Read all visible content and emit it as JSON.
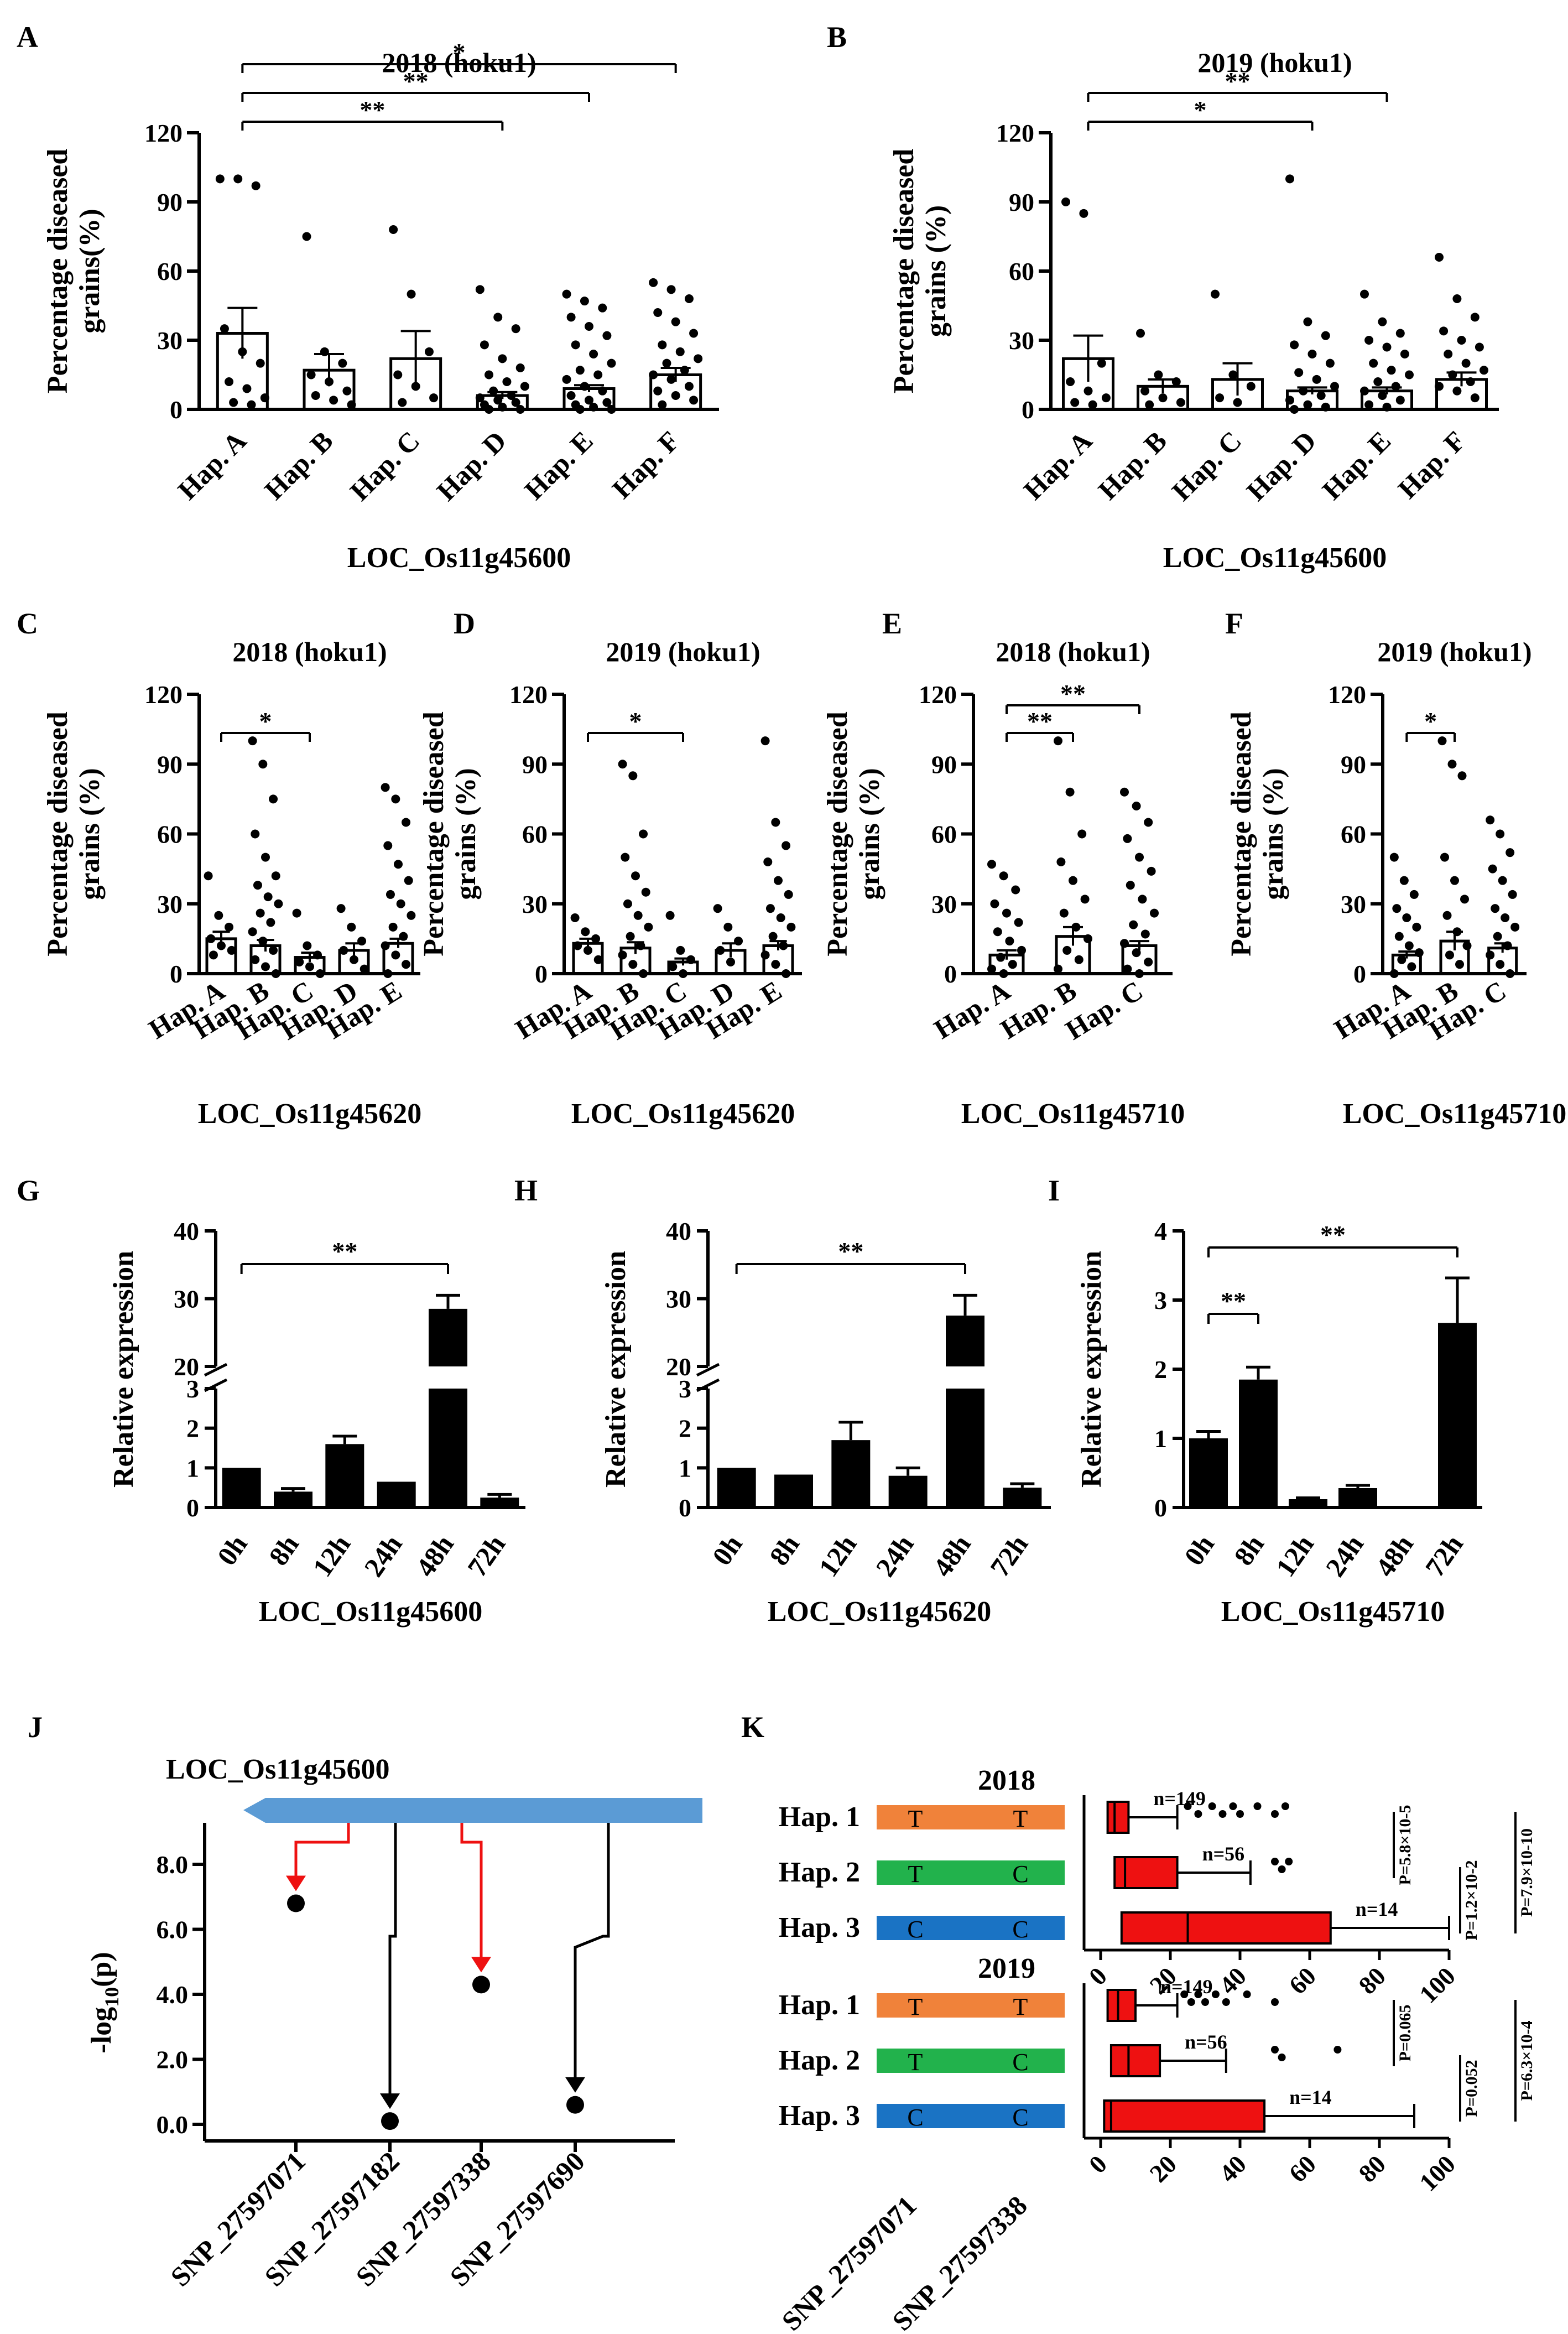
{
  "panels": [
    {
      "letter": "A",
      "title": "2018 (hoku1)",
      "ylabel": "Percentage diseased\ngrains(%)",
      "xlabel": "LOC_Os11g45600",
      "yticks": [
        0,
        30,
        60,
        90,
        120
      ],
      "ylim": [
        0,
        120
      ],
      "chart_data": {
        "type": "bar",
        "categories": [
          "Hap. A",
          "Hap. B",
          "Hap. C",
          "Hap. D",
          "Hap. E",
          "Hap. F"
        ],
        "values": [
          33,
          17,
          22,
          6,
          9,
          15
        ],
        "errors": [
          11,
          7,
          12,
          1.5,
          1.5,
          3
        ],
        "points": [
          [
            100,
            100,
            97,
            35,
            25,
            20,
            12,
            9,
            5,
            3,
            2
          ],
          [
            75,
            25,
            20,
            15,
            12,
            8,
            6,
            4,
            2
          ],
          [
            78,
            50,
            25,
            15,
            10,
            5,
            3
          ],
          [
            52,
            40,
            35,
            28,
            22,
            18,
            15,
            12,
            10,
            8,
            6,
            5,
            4,
            3,
            2,
            1,
            0,
            0
          ],
          [
            50,
            47,
            44,
            40,
            36,
            32,
            28,
            24,
            20,
            17,
            15,
            13,
            10,
            8,
            6,
            4,
            3,
            2,
            1,
            0,
            0
          ],
          [
            55,
            52,
            48,
            42,
            38,
            33,
            28,
            25,
            22,
            20,
            17,
            15,
            13,
            10,
            8,
            6,
            4,
            2
          ]
        ],
        "brackets": [
          {
            "from": 0,
            "to": 3,
            "label": "**"
          },
          {
            "from": 0,
            "to": 4,
            "label": "**"
          },
          {
            "from": 0,
            "to": 5,
            "label": "*"
          }
        ]
      }
    },
    {
      "letter": "B",
      "title": "2019 (hoku1)",
      "ylabel": "Percentage diseased\ngrains (%)",
      "xlabel": "LOC_Os11g45600",
      "yticks": [
        0,
        30,
        60,
        90,
        120
      ],
      "ylim": [
        0,
        120
      ],
      "chart_data": {
        "type": "bar",
        "categories": [
          "Hap. A",
          "Hap. B",
          "Hap. C",
          "Hap. D",
          "Hap. E",
          "Hap. F"
        ],
        "values": [
          22,
          10,
          13,
          8,
          8,
          13
        ],
        "errors": [
          10,
          3,
          7,
          1.5,
          1.5,
          3
        ],
        "points": [
          [
            90,
            85,
            20,
            12,
            8,
            5,
            3,
            2
          ],
          [
            33,
            15,
            12,
            8,
            5,
            3,
            2
          ],
          [
            50,
            15,
            10,
            5,
            3
          ],
          [
            100,
            38,
            32,
            28,
            24,
            20,
            16,
            13,
            10,
            8,
            6,
            4,
            2,
            1,
            0
          ],
          [
            50,
            38,
            33,
            30,
            27,
            24,
            20,
            17,
            15,
            12,
            10,
            8,
            6,
            4,
            2,
            1
          ],
          [
            66,
            48,
            40,
            34,
            30,
            27,
            24,
            20,
            17,
            15,
            12,
            10,
            8,
            5
          ]
        ],
        "brackets": [
          {
            "from": 0,
            "to": 3,
            "label": "*"
          },
          {
            "from": 0,
            "to": 4,
            "label": "**"
          }
        ]
      }
    },
    {
      "letter": "C",
      "title": "2018 (hoku1)",
      "ylabel": "Percentage diseased\ngrains (%)",
      "xlabel": "LOC_Os11g45620",
      "yticks": [
        0,
        30,
        60,
        90,
        120
      ],
      "ylim": [
        0,
        120
      ],
      "chart_data": {
        "type": "bar",
        "categories": [
          "Hap. A",
          "Hap. B",
          "Hap. C",
          "Hap. D",
          "Hap. E"
        ],
        "values": [
          15,
          12,
          7,
          10,
          13
        ],
        "errors": [
          3,
          2.5,
          2,
          3,
          2
        ],
        "points": [
          [
            42,
            25,
            20,
            15,
            12,
            10,
            8
          ],
          [
            100,
            90,
            75,
            60,
            50,
            42,
            38,
            33,
            30,
            26,
            22,
            18,
            14,
            10,
            6,
            3,
            0
          ],
          [
            26,
            12,
            8,
            5,
            3,
            0
          ],
          [
            28,
            20,
            14,
            10,
            6,
            2
          ],
          [
            80,
            75,
            65,
            55,
            47,
            40,
            34,
            30,
            25,
            20,
            16,
            12,
            8,
            4,
            0
          ]
        ],
        "brackets": [
          {
            "from": 0,
            "to": 2,
            "label": "*"
          }
        ]
      }
    },
    {
      "letter": "D",
      "title": "2019 (hoku1)",
      "ylabel": "Percentage diseased\ngrains (%)",
      "xlabel": "LOC_Os11g45620",
      "yticks": [
        0,
        30,
        60,
        90,
        120
      ],
      "ylim": [
        0,
        120
      ],
      "chart_data": {
        "type": "bar",
        "categories": [
          "Hap. A",
          "Hap. B",
          "Hap. C",
          "Hap. D",
          "Hap. E"
        ],
        "values": [
          13,
          11,
          5,
          10,
          12
        ],
        "errors": [
          2,
          2.5,
          1.5,
          3,
          2
        ],
        "points": [
          [
            24,
            18,
            15,
            12,
            10,
            6
          ],
          [
            90,
            85,
            60,
            50,
            42,
            35,
            30,
            25,
            20,
            16,
            12,
            8,
            4,
            0
          ],
          [
            25,
            10,
            6,
            3,
            0
          ],
          [
            28,
            20,
            14,
            10,
            5
          ],
          [
            100,
            65,
            55,
            48,
            40,
            34,
            28,
            24,
            20,
            16,
            12,
            8,
            4,
            0
          ]
        ],
        "brackets": [
          {
            "from": 0,
            "to": 2,
            "label": "*"
          }
        ]
      }
    },
    {
      "letter": "E",
      "title": "2018 (hoku1)",
      "ylabel": "Percentage diseased\ngrains (%)",
      "xlabel": "LOC_Os11g45710",
      "yticks": [
        0,
        30,
        60,
        90,
        120
      ],
      "ylim": [
        0,
        120
      ],
      "chart_data": {
        "type": "bar",
        "categories": [
          "Hap. A",
          "Hap. B",
          "Hap. C"
        ],
        "values": [
          8,
          16,
          12
        ],
        "errors": [
          2,
          4,
          2
        ],
        "points": [
          [
            47,
            42,
            36,
            30,
            26,
            22,
            18,
            14,
            10,
            7,
            4,
            2,
            0
          ],
          [
            100,
            78,
            60,
            48,
            40,
            32,
            26,
            20,
            15,
            10,
            6,
            2
          ],
          [
            78,
            72,
            65,
            58,
            50,
            44,
            38,
            32,
            26,
            21,
            17,
            13,
            9,
            5,
            2,
            0
          ]
        ],
        "brackets": [
          {
            "from": 0,
            "to": 1,
            "label": "**"
          },
          {
            "from": 0,
            "to": 2,
            "label": "**"
          }
        ]
      }
    },
    {
      "letter": "F",
      "title": "2019 (hoku1)",
      "ylabel": "Percentage diseased\ngrains (%)",
      "xlabel": "LOC_Os11g45710",
      "yticks": [
        0,
        30,
        60,
        90,
        120
      ],
      "ylim": [
        0,
        120
      ],
      "chart_data": {
        "type": "bar",
        "categories": [
          "Hap. A",
          "Hap. B",
          "Hap. C"
        ],
        "values": [
          8,
          14,
          11
        ],
        "errors": [
          1.5,
          4,
          2
        ],
        "points": [
          [
            50,
            40,
            34,
            28,
            24,
            20,
            16,
            12,
            9,
            6,
            3,
            0
          ],
          [
            100,
            90,
            85,
            50,
            40,
            32,
            25,
            18,
            12,
            8,
            4
          ],
          [
            66,
            60,
            52,
            45,
            40,
            34,
            28,
            24,
            20,
            16,
            12,
            8,
            4,
            0
          ]
        ],
        "brackets": [
          {
            "from": 0,
            "to": 1,
            "label": "*"
          }
        ]
      }
    }
  ],
  "expression_panels": [
    {
      "letter": "G",
      "ylabel": "Relative expression",
      "xlabel": "LOC_Os11g45600",
      "broken": true,
      "yticks_low": [
        0,
        1,
        2,
        3
      ],
      "yticks_high": [
        20,
        30,
        40
      ],
      "chart_data": {
        "type": "bar",
        "categories": [
          "0h",
          "8h",
          "12h",
          "24h",
          "48h",
          "72h"
        ],
        "values": [
          1,
          0.4,
          1.6,
          0.65,
          28.5,
          0.25
        ],
        "errors": [
          0,
          0.08,
          0.2,
          0,
          2,
          0.08
        ],
        "bracket": {
          "from": 0,
          "to": 4,
          "label": "**"
        }
      }
    },
    {
      "letter": "H",
      "ylabel": "Relative expression",
      "xlabel": "LOC_Os11g45620",
      "broken": true,
      "yticks_low": [
        0,
        1,
        2,
        3
      ],
      "yticks_high": [
        20,
        30,
        40
      ],
      "chart_data": {
        "type": "bar",
        "categories": [
          "0h",
          "8h",
          "12h",
          "24h",
          "48h",
          "72h"
        ],
        "values": [
          1,
          0.83,
          1.7,
          0.8,
          27.5,
          0.5
        ],
        "errors": [
          0,
          0,
          0.45,
          0.2,
          3,
          0.1
        ],
        "bracket": {
          "from": 0,
          "to": 4,
          "label": "**"
        }
      }
    },
    {
      "letter": "I",
      "ylabel": "Relative expression",
      "xlabel": "LOC_Os11g45710",
      "broken": false,
      "yticks": [
        0,
        1,
        2,
        3,
        4
      ],
      "ylim": [
        0,
        4
      ],
      "chart_data": {
        "type": "bar",
        "categories": [
          "0h",
          "8h",
          "12h",
          "24h",
          "48h",
          "72h"
        ],
        "values": [
          1,
          1.85,
          0.12,
          0.28,
          0.02,
          2.67
        ],
        "errors": [
          0.1,
          0.18,
          0.02,
          0.04,
          0,
          0.65
        ],
        "brackets": [
          {
            "from": 0,
            "to": 1,
            "label": "**"
          },
          {
            "from": 0,
            "to": 5,
            "label": "**"
          }
        ]
      }
    }
  ],
  "panel_j": {
    "letter": "J",
    "gene": "LOC_Os11g45600",
    "ylabel": "-log10(p)",
    "yticks": [
      "0.0",
      "2.0",
      "4.0",
      "6.0",
      "8.0"
    ],
    "chart_data": {
      "type": "scatter",
      "x": [
        "SNP_27597071",
        "SNP_27597182",
        "SNP_27597338",
        "SNP_27597690"
      ],
      "y": [
        6.8,
        0.1,
        4.3,
        0.6
      ],
      "highlight": [
        true,
        false,
        true,
        false
      ]
    }
  },
  "panel_k": {
    "letter": "K",
    "snp_labels": [
      "SNP_27597071",
      "SNP_27597338"
    ],
    "colors": {
      "hap1": "#f0823a",
      "hap2": "#22b24c",
      "hap3": "#1a73c4",
      "box": "#ee1111"
    },
    "years": [
      {
        "year": "2018",
        "xticks": [
          0,
          20,
          40,
          60,
          80,
          100
        ],
        "haps": [
          {
            "name": "Hap. 1",
            "alleles": [
              "T",
              "T"
            ],
            "n": "n=149",
            "q1": 2,
            "med": 4,
            "q3": 8,
            "wl": 0,
            "wh": 22
          },
          {
            "name": "Hap. 2",
            "alleles": [
              "T",
              "C"
            ],
            "n": "n=56",
            "q1": 4,
            "med": 7,
            "q3": 22,
            "wl": 0,
            "wh": 43
          },
          {
            "name": "Hap. 3",
            "alleles": [
              "C",
              "C"
            ],
            "n": "n=14",
            "q1": 6,
            "med": 25,
            "q3": 66,
            "wl": 0,
            "wh": 100
          }
        ],
        "outliers": [
          [
            25,
            28,
            32,
            35,
            38,
            40,
            45,
            50,
            53
          ],
          [
            50,
            52,
            54
          ],
          []
        ],
        "pvals": [
          "P=5.8×10-5",
          "P=1.2×10-2",
          "P=7.9×10-10"
        ]
      },
      {
        "year": "2019",
        "xticks": [
          0,
          20,
          40,
          60,
          80,
          100
        ],
        "haps": [
          {
            "name": "Hap. 1",
            "alleles": [
              "T",
              "T"
            ],
            "n": "n=149",
            "q1": 2,
            "med": 5,
            "q3": 10,
            "wl": 0,
            "wh": 22
          },
          {
            "name": "Hap. 2",
            "alleles": [
              "T",
              "C"
            ],
            "n": "n=56",
            "q1": 3,
            "med": 8,
            "q3": 17,
            "wl": 0,
            "wh": 36
          },
          {
            "name": "Hap. 3",
            "alleles": [
              "C",
              "C"
            ],
            "n": "n=14",
            "q1": 1,
            "med": 3,
            "q3": 47,
            "wl": 0,
            "wh": 90
          }
        ],
        "outliers": [
          [
            24,
            26,
            28,
            30,
            33,
            36,
            42,
            50
          ],
          [
            50,
            52,
            68
          ],
          []
        ],
        "pvals": [
          "P=0.065",
          "P=0.052",
          "P=6.3×10-4"
        ]
      }
    ]
  }
}
